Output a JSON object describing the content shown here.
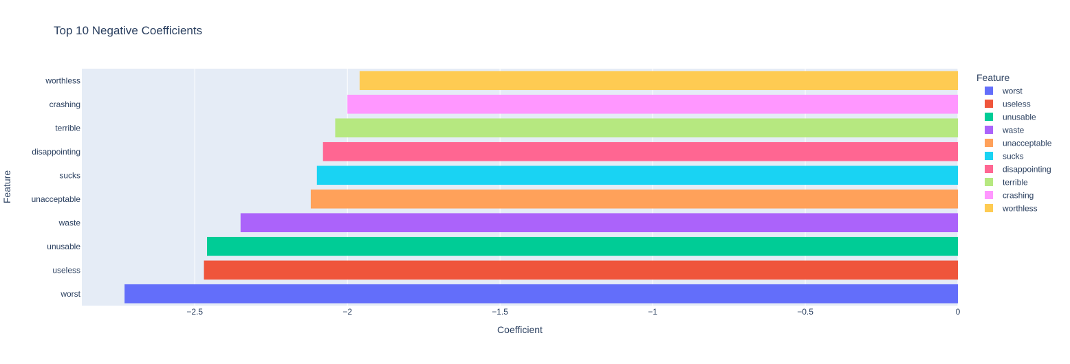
{
  "chart_data": {
    "type": "bar",
    "orientation": "horizontal",
    "title": "Top 10 Negative Coefficients",
    "xlabel": "Coefficient",
    "ylabel": "Feature",
    "legend_title": "Feature",
    "legend_position": "right",
    "grid": true,
    "xlim": [
      -2.87,
      0
    ],
    "x_ticks": [
      -2.5,
      -2,
      -1.5,
      -1,
      -0.5,
      0
    ],
    "x_tick_labels": [
      "−2.5",
      "−2",
      "−1.5",
      "−1",
      "−0.5",
      "0"
    ],
    "categories": [
      "worst",
      "useless",
      "unusable",
      "waste",
      "unacceptable",
      "sucks",
      "disappointing",
      "terrible",
      "crashing",
      "worthless"
    ],
    "values": [
      -2.73,
      -2.47,
      -2.46,
      -2.35,
      -2.12,
      -2.1,
      -2.08,
      -2.04,
      -2.0,
      -1.96
    ],
    "colors": [
      "#636efa",
      "#ef553b",
      "#00cc96",
      "#ab63fa",
      "#ffa15a",
      "#19d3f3",
      "#ff6692",
      "#b6e880",
      "#ff97ff",
      "#fecb52"
    ]
  }
}
